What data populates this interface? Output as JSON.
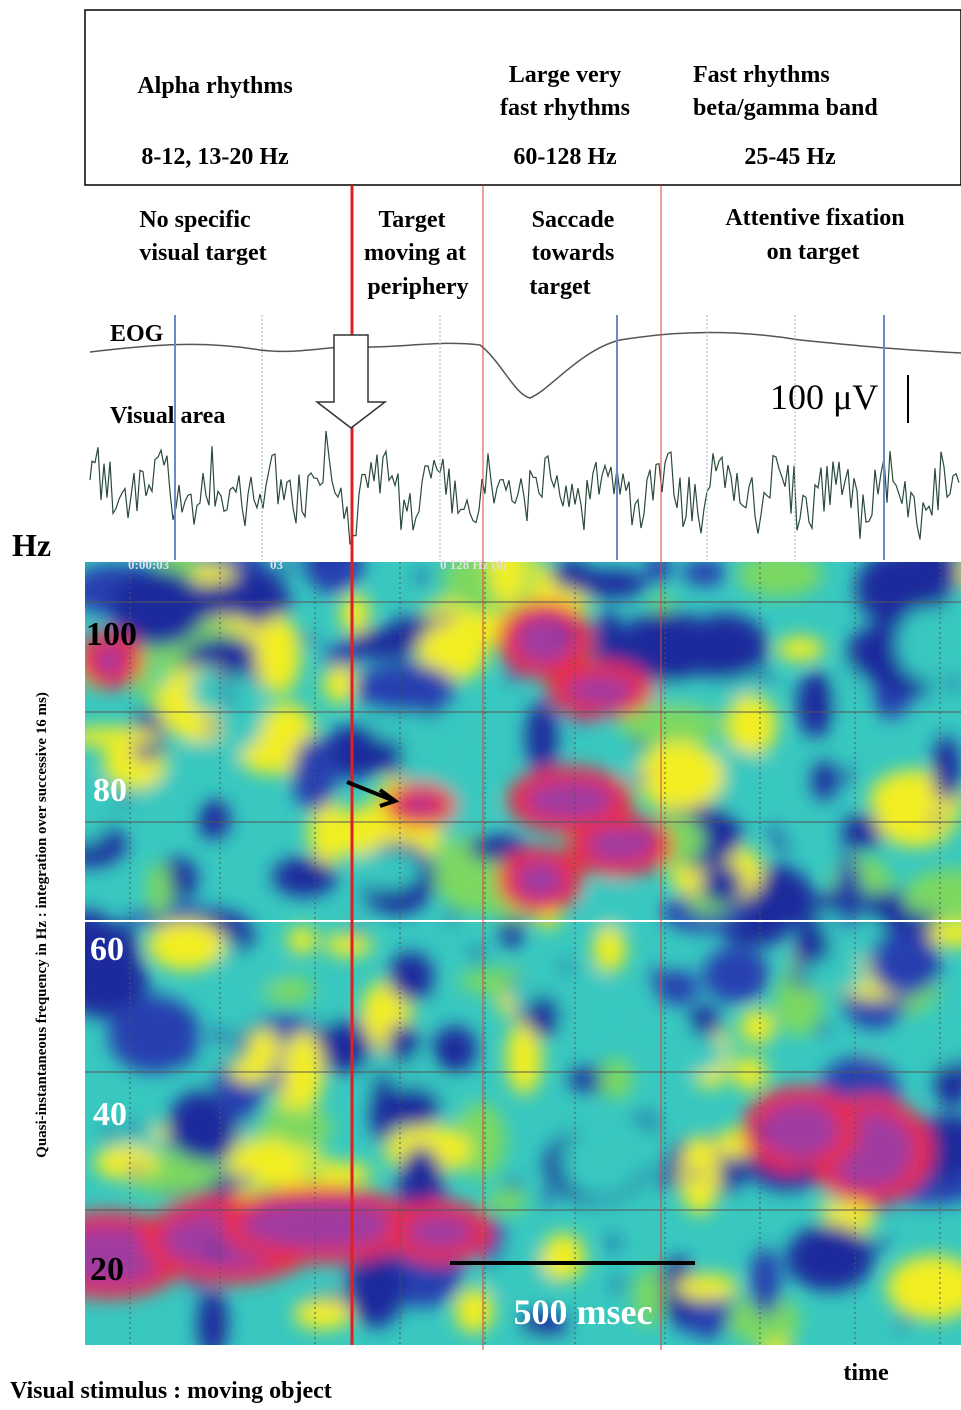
{
  "header": {
    "alpha": {
      "title": "Alpha rhythms",
      "band": "8-12, 13-20 Hz"
    },
    "very_fast": {
      "title": [
        "Large very",
        "fast rhythms"
      ],
      "band": "60-128 Hz"
    },
    "fast": {
      "title": [
        "Fast rhythms",
        "beta/gamma band"
      ],
      "band": "25-45 Hz"
    }
  },
  "phases": [
    [
      "No specific",
      "visual target"
    ],
    [
      "Target",
      "moving at",
      "periphery"
    ],
    [
      "Saccade",
      "towards",
      "target"
    ],
    [
      "Attentive fixation",
      "on target"
    ]
  ],
  "traces": {
    "eog": "EOG",
    "visual": "Visual area",
    "scale": "100 μV"
  },
  "map": {
    "unit": "Hz",
    "axis_label": "Quasi-instantaneous frequency in Hz : integration over successive 16 ms)",
    "overlay": [
      "0:00:03",
      "03",
      "0 128 Hz (0)"
    ],
    "freq_labels": [
      "100",
      "80",
      "60",
      "40",
      "20"
    ],
    "scale_bar": "500 msec"
  },
  "time_label": "time",
  "caption": "Visual stimulus : moving object"
}
